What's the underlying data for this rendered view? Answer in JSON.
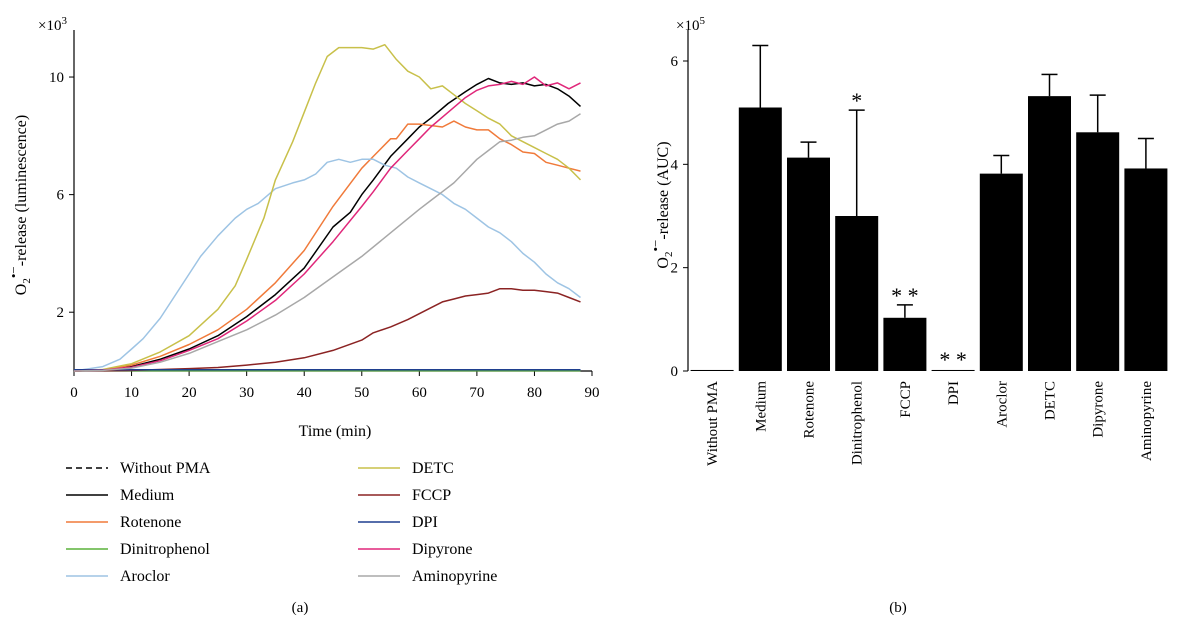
{
  "panel_a_label": "(a)",
  "panel_b_label": "(b)",
  "chart_data": [
    {
      "type": "line",
      "xlabel": "Time (min)",
      "ylabel": "O2•−-release (luminescence)",
      "y_multiplier": "×10³",
      "xlim": [
        0,
        90
      ],
      "ylim": [
        0,
        11.6
      ],
      "xticks": [
        0,
        10,
        20,
        30,
        40,
        50,
        60,
        70,
        80,
        90
      ],
      "yticks": [
        2,
        6,
        10
      ],
      "legend_position": "bottom",
      "series": [
        {
          "name": "Without PMA",
          "color": "#000000",
          "dash": true,
          "x": [
            0,
            88
          ],
          "y": [
            0.02,
            0.02
          ]
        },
        {
          "name": "Medium",
          "color": "#000000",
          "x": [
            0,
            5,
            10,
            15,
            20,
            25,
            30,
            35,
            40,
            45,
            48,
            50,
            52,
            55,
            58,
            60,
            62,
            65,
            68,
            70,
            72,
            74,
            76,
            78,
            80,
            82,
            84,
            86,
            88
          ],
          "y": [
            0,
            0.03,
            0.15,
            0.4,
            0.75,
            1.2,
            1.85,
            2.6,
            3.5,
            4.9,
            5.4,
            6.0,
            6.5,
            7.3,
            7.9,
            8.3,
            8.6,
            9.1,
            9.5,
            9.75,
            9.95,
            9.8,
            9.75,
            9.8,
            9.7,
            9.75,
            9.6,
            9.35,
            9.0
          ]
        },
        {
          "name": "Rotenone",
          "color": "#f07a3a",
          "x": [
            0,
            5,
            10,
            15,
            20,
            25,
            30,
            35,
            40,
            45,
            50,
            52,
            55,
            56,
            58,
            60,
            62,
            64,
            66,
            68,
            70,
            72,
            74,
            76,
            78,
            80,
            82,
            84,
            86,
            88
          ],
          "y": [
            0,
            0.03,
            0.2,
            0.5,
            0.9,
            1.4,
            2.1,
            3.0,
            4.1,
            5.6,
            6.9,
            7.3,
            7.9,
            7.9,
            8.4,
            8.4,
            8.35,
            8.3,
            8.5,
            8.3,
            8.2,
            8.2,
            7.9,
            7.7,
            7.45,
            7.4,
            7.1,
            7.0,
            6.9,
            6.8
          ]
        },
        {
          "name": "Dinitrophenol",
          "color": "#5ab23a",
          "x": [
            0,
            88
          ],
          "y": [
            0.01,
            0.01
          ]
        },
        {
          "name": "Aroclor",
          "color": "#9ec4e4",
          "x": [
            0,
            5,
            8,
            10,
            12,
            15,
            18,
            20,
            22,
            25,
            28,
            30,
            32,
            35,
            38,
            40,
            42,
            44,
            46,
            48,
            50,
            52,
            54,
            56,
            58,
            60,
            62,
            64,
            66,
            68,
            70,
            72,
            74,
            76,
            78,
            80,
            82,
            84,
            86,
            88
          ],
          "y": [
            0,
            0.15,
            0.4,
            0.75,
            1.1,
            1.8,
            2.7,
            3.3,
            3.9,
            4.6,
            5.2,
            5.5,
            5.7,
            6.2,
            6.4,
            6.5,
            6.7,
            7.1,
            7.2,
            7.1,
            7.2,
            7.2,
            7.0,
            6.9,
            6.6,
            6.4,
            6.2,
            6.0,
            5.7,
            5.5,
            5.2,
            4.9,
            4.7,
            4.4,
            4.0,
            3.7,
            3.3,
            3.0,
            2.8,
            2.5
          ]
        },
        {
          "name": "DETC",
          "color": "#c8c04a",
          "x": [
            0,
            5,
            10,
            15,
            20,
            25,
            28,
            30,
            33,
            35,
            38,
            40,
            42,
            44,
            46,
            48,
            50,
            52,
            54,
            56,
            58,
            60,
            62,
            64,
            66,
            68,
            70,
            72,
            74,
            76,
            78,
            80,
            82,
            84,
            86,
            88
          ],
          "y": [
            0,
            0.05,
            0.25,
            0.65,
            1.2,
            2.1,
            2.9,
            3.8,
            5.2,
            6.5,
            7.8,
            8.8,
            9.8,
            10.7,
            11.0,
            11.0,
            11.0,
            10.95,
            11.1,
            10.6,
            10.2,
            10.0,
            9.6,
            9.7,
            9.4,
            9.1,
            8.85,
            8.6,
            8.4,
            8.0,
            7.8,
            7.6,
            7.4,
            7.2,
            6.9,
            6.5
          ]
        },
        {
          "name": "FCCP",
          "color": "#8b2323",
          "x": [
            0,
            10,
            15,
            20,
            25,
            30,
            35,
            40,
            45,
            50,
            52,
            55,
            58,
            60,
            62,
            64,
            66,
            68,
            70,
            72,
            74,
            76,
            78,
            80,
            82,
            84,
            86,
            88
          ],
          "y": [
            0,
            0.02,
            0.05,
            0.08,
            0.12,
            0.2,
            0.3,
            0.45,
            0.7,
            1.05,
            1.3,
            1.5,
            1.75,
            1.95,
            2.15,
            2.35,
            2.45,
            2.55,
            2.6,
            2.65,
            2.8,
            2.8,
            2.75,
            2.75,
            2.7,
            2.65,
            2.5,
            2.35
          ]
        },
        {
          "name": "DPI",
          "color": "#1f3f8f",
          "x": [
            0,
            88
          ],
          "y": [
            0.04,
            0.04
          ]
        },
        {
          "name": "Dipyrone",
          "color": "#e0277a",
          "x": [
            0,
            5,
            10,
            15,
            20,
            25,
            30,
            35,
            40,
            45,
            50,
            52,
            55,
            58,
            60,
            62,
            65,
            68,
            70,
            72,
            74,
            76,
            78,
            80,
            82,
            84,
            86,
            88
          ],
          "y": [
            0,
            0.03,
            0.13,
            0.35,
            0.7,
            1.1,
            1.7,
            2.4,
            3.3,
            4.4,
            5.6,
            6.1,
            6.9,
            7.5,
            7.9,
            8.3,
            8.8,
            9.3,
            9.55,
            9.7,
            9.75,
            9.85,
            9.75,
            10.0,
            9.7,
            9.8,
            9.6,
            9.8
          ]
        },
        {
          "name": "Aminopyrine",
          "color": "#a8a8a8",
          "x": [
            0,
            5,
            10,
            15,
            20,
            25,
            30,
            35,
            40,
            45,
            50,
            55,
            60,
            62,
            64,
            66,
            68,
            70,
            72,
            74,
            76,
            78,
            80,
            82,
            84,
            86,
            88
          ],
          "y": [
            0,
            0.02,
            0.1,
            0.3,
            0.6,
            1.0,
            1.4,
            1.9,
            2.5,
            3.2,
            3.9,
            4.7,
            5.5,
            5.8,
            6.1,
            6.4,
            6.8,
            7.2,
            7.5,
            7.8,
            7.85,
            7.95,
            8.0,
            8.2,
            8.4,
            8.5,
            8.75
          ]
        }
      ]
    },
    {
      "type": "bar",
      "ylabel": "O2•−-release (AUC)",
      "y_multiplier": "×10⁵",
      "ylim": [
        0,
        6.6
      ],
      "yticks": [
        0,
        2,
        4,
        6
      ],
      "categories": [
        "Without PMA",
        "Medium",
        "Rotenone",
        "Dinitrophenol",
        "FCCP",
        "DPI",
        "Aroclor",
        "DETC",
        "Dipyrone",
        "Aminopyrine"
      ],
      "values": [
        0.02,
        5.1,
        4.13,
        3.0,
        1.03,
        0.02,
        3.82,
        5.32,
        4.62,
        3.92
      ],
      "errors": [
        0.02,
        1.2,
        0.3,
        2.05,
        0.25,
        0.02,
        0.35,
        0.42,
        0.72,
        0.58
      ],
      "significance": [
        "",
        "",
        "",
        "*",
        "**",
        "**",
        "",
        "",
        "",
        ""
      ],
      "bar_color": "#000000"
    }
  ]
}
